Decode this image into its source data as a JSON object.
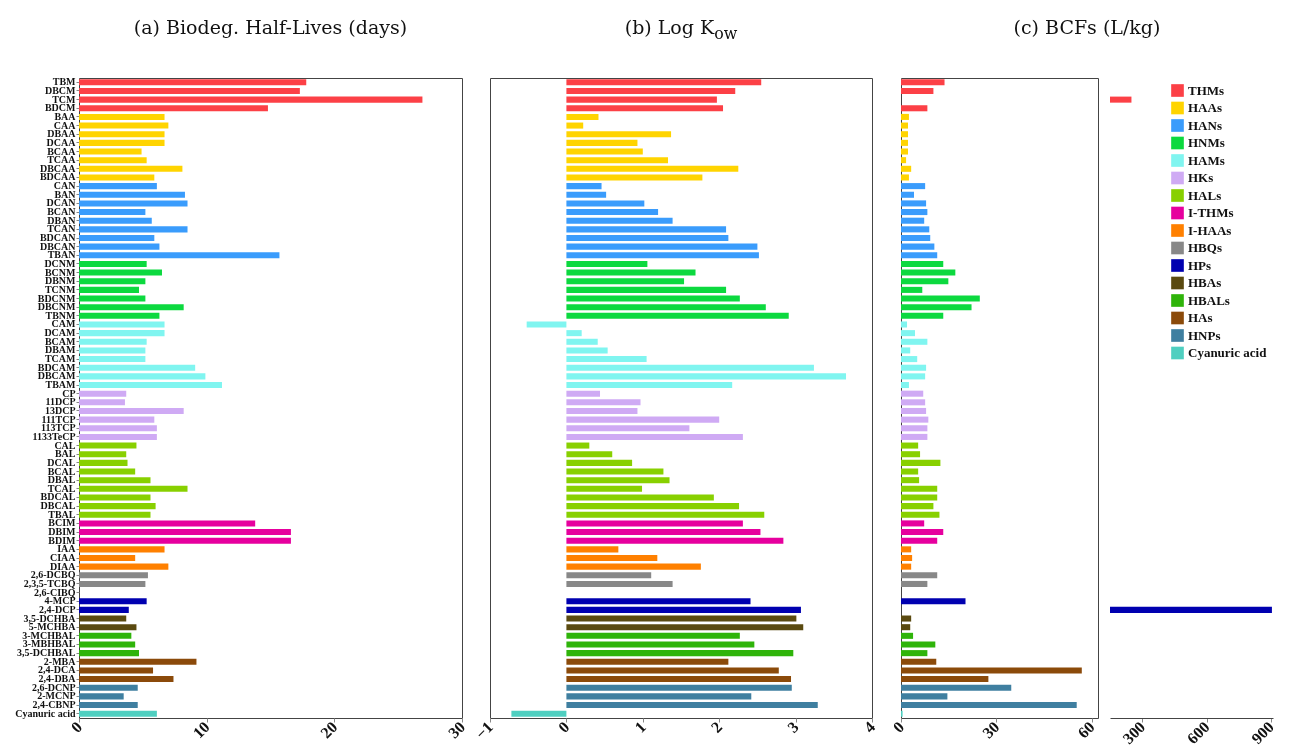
{
  "chart_data": [
    {
      "type": "bar",
      "orientation": "horizontal",
      "title": "(a) Biodeg. Half-Lives (days)",
      "categories": [
        "TBM",
        "DBCM",
        "TCM",
        "BDCM",
        "BAA",
        "CAA",
        "DBAA",
        "DCAA",
        "BCAA",
        "TCAA",
        "DBCAA",
        "BDCAA",
        "CAN",
        "BAN",
        "DCAN",
        "BCAN",
        "DBAN",
        "TCAN",
        "BDCAN",
        "DBCAN",
        "TBAN",
        "DCNM",
        "BCNM",
        "DBNM",
        "TCNM",
        "BDCNM",
        "DBCNM",
        "TBNM",
        "CAM",
        "DCAM",
        "BCAM",
        "DBAM",
        "TCAM",
        "BDCAM",
        "DBCAM",
        "TBAM",
        "CP",
        "11DCP",
        "13DCP",
        "111TCP",
        "113TCP",
        "1133TeCP",
        "CAL",
        "BAL",
        "DCAL",
        "BCAL",
        "DBAL",
        "TCAL",
        "BDCAL",
        "DBCAL",
        "TBAL",
        "BCIM",
        "DBIM",
        "BDIM",
        "IAA",
        "CIAA",
        "DIAA",
        "2,6-DCBQ",
        "2,3,5-TCBQ",
        "2,6-CIBQ",
        "4-MCP",
        "2,4-DCP",
        "3,5-DCHBA",
        "5-MCHBA",
        "3-MCHBAL",
        "3-MBHBAL",
        "3,5-DCHBAL",
        "2-MBA",
        "2,4-DCA",
        "2,4-DBA",
        "2,6-DCNP",
        "2-MCNP",
        "2,4-CBNP",
        "Cyanuric acid"
      ],
      "values": [
        17.8,
        17.3,
        26.9,
        14.8,
        6.7,
        7.0,
        6.7,
        6.7,
        4.9,
        5.3,
        8.1,
        5.9,
        6.1,
        8.3,
        8.5,
        5.2,
        5.7,
        8.5,
        5.9,
        6.3,
        15.7,
        5.3,
        6.5,
        5.2,
        4.7,
        5.2,
        8.2,
        6.3,
        6.7,
        6.7,
        5.3,
        5.2,
        5.2,
        9.1,
        9.9,
        11.2,
        3.7,
        3.6,
        8.2,
        5.9,
        6.1,
        6.1,
        4.5,
        3.7,
        3.8,
        4.4,
        5.6,
        8.5,
        5.6,
        6.0,
        5.6,
        13.8,
        16.6,
        16.6,
        6.7,
        4.4,
        7.0,
        5.4,
        5.2,
        null,
        5.3,
        3.9,
        3.7,
        4.5,
        4.1,
        4.4,
        4.7,
        9.2,
        5.8,
        7.4,
        4.6,
        3.5,
        4.6,
        6.1
      ],
      "colors": [
        "#fc4046",
        "#fc4046",
        "#fc4046",
        "#fc4046",
        "#ffd400",
        "#ffd400",
        "#ffd400",
        "#ffd400",
        "#ffd400",
        "#ffd400",
        "#ffd400",
        "#ffd400",
        "#3a9cfc",
        "#3a9cfc",
        "#3a9cfc",
        "#3a9cfc",
        "#3a9cfc",
        "#3a9cfc",
        "#3a9cfc",
        "#3a9cfc",
        "#3a9cfc",
        "#0cd93f",
        "#0cd93f",
        "#0cd93f",
        "#0cd93f",
        "#0cd93f",
        "#0cd93f",
        "#0cd93f",
        "#80f5f0",
        "#80f5f0",
        "#80f5f0",
        "#80f5f0",
        "#80f5f0",
        "#80f5f0",
        "#80f5f0",
        "#80f5f0",
        "#cfaaf4",
        "#cfaaf4",
        "#cfaaf4",
        "#cfaaf4",
        "#cfaaf4",
        "#cfaaf4",
        "#88d000",
        "#88d000",
        "#88d000",
        "#88d000",
        "#88d000",
        "#88d000",
        "#88d000",
        "#88d000",
        "#88d000",
        "#e6009e",
        "#e6009e",
        "#e6009e",
        "#ff8000",
        "#ff8000",
        "#ff8000",
        "#888888",
        "#888888",
        null,
        "#0000b0",
        "#0000b0",
        "#5a4a10",
        "#5a4a10",
        "#2fb40a",
        "#2fb40a",
        "#2fb40a",
        "#8b4a0a",
        "#8b4a0a",
        "#8b4a0a",
        "#3f7fa0",
        "#3f7fa0",
        "#3f7fa0",
        "#4fcfc0"
      ],
      "xlim": [
        0,
        30
      ],
      "xticks": [
        0,
        10,
        20,
        30
      ]
    },
    {
      "type": "bar",
      "orientation": "horizontal",
      "title": "(b) Log K$_{ow}$",
      "categories": [
        null,
        null,
        null,
        null,
        null,
        null,
        null,
        null,
        null,
        null,
        null,
        null,
        null,
        null,
        null,
        null,
        null,
        null,
        null,
        null,
        null,
        null,
        null,
        null,
        null,
        null,
        null,
        null,
        null,
        null,
        null,
        null,
        null,
        null,
        null,
        null,
        null,
        null,
        null,
        null,
        null,
        null,
        null,
        null,
        null,
        null,
        null,
        null,
        null,
        null,
        null,
        null,
        null,
        null,
        null,
        null,
        null,
        null,
        null,
        null,
        null,
        null,
        null,
        null,
        null,
        null,
        null,
        null,
        null,
        null,
        null,
        null,
        null,
        null
      ],
      "values": [
        2.55,
        2.21,
        1.97,
        2.05,
        0.42,
        0.22,
        1.37,
        0.93,
        1.0,
        1.33,
        2.25,
        1.78,
        0.46,
        0.52,
        1.02,
        1.2,
        1.39,
        2.09,
        2.12,
        2.5,
        2.52,
        1.06,
        1.69,
        1.54,
        2.09,
        2.27,
        2.61,
        2.91,
        -0.52,
        0.2,
        0.41,
        0.54,
        1.05,
        3.24,
        3.66,
        2.17,
        0.44,
        0.97,
        0.93,
        2.0,
        1.61,
        2.31,
        0.3,
        0.6,
        0.86,
        1.27,
        1.35,
        0.99,
        1.93,
        2.26,
        2.59,
        2.31,
        2.54,
        2.84,
        0.68,
        1.19,
        1.76,
        1.11,
        1.39,
        null,
        2.41,
        3.07,
        3.01,
        3.1,
        2.27,
        2.46,
        2.97,
        2.12,
        2.78,
        2.94,
        2.95,
        2.42,
        3.29,
        -0.72
      ],
      "colors": [
        "#fc4046",
        "#fc4046",
        "#fc4046",
        "#fc4046",
        "#ffd400",
        "#ffd400",
        "#ffd400",
        "#ffd400",
        "#ffd400",
        "#ffd400",
        "#ffd400",
        "#ffd400",
        "#3a9cfc",
        "#3a9cfc",
        "#3a9cfc",
        "#3a9cfc",
        "#3a9cfc",
        "#3a9cfc",
        "#3a9cfc",
        "#3a9cfc",
        "#3a9cfc",
        "#0cd93f",
        "#0cd93f",
        "#0cd93f",
        "#0cd93f",
        "#0cd93f",
        "#0cd93f",
        "#0cd93f",
        "#80f5f0",
        "#80f5f0",
        "#80f5f0",
        "#80f5f0",
        "#80f5f0",
        "#80f5f0",
        "#80f5f0",
        "#80f5f0",
        "#cfaaf4",
        "#cfaaf4",
        "#cfaaf4",
        "#cfaaf4",
        "#cfaaf4",
        "#cfaaf4",
        "#88d000",
        "#88d000",
        "#88d000",
        "#88d000",
        "#88d000",
        "#88d000",
        "#88d000",
        "#88d000",
        "#88d000",
        "#e6009e",
        "#e6009e",
        "#e6009e",
        "#ff8000",
        "#ff8000",
        "#ff8000",
        "#888888",
        "#888888",
        null,
        "#0000b0",
        "#0000b0",
        "#5a4a10",
        "#5a4a10",
        "#2fb40a",
        "#2fb40a",
        "#2fb40a",
        "#8b4a0a",
        "#8b4a0a",
        "#8b4a0a",
        "#3f7fa0",
        "#3f7fa0",
        "#3f7fa0",
        "#4fcfc0"
      ],
      "xlim": [
        -1,
        4
      ],
      "xticks": [
        -1,
        0,
        1,
        2,
        3,
        4
      ],
      "tick_labels": "x"
    },
    {
      "type": "bar",
      "orientation": "horizontal",
      "title": "(c) BCFs (L/kg)",
      "categories": [
        null,
        null,
        null,
        null,
        null,
        null,
        null,
        null,
        null,
        null,
        null,
        null,
        null,
        null,
        null,
        null,
        null,
        null,
        null,
        null,
        null,
        null,
        null,
        null,
        null,
        null,
        null,
        null,
        null,
        null,
        null,
        null,
        null,
        null,
        null,
        null,
        null,
        null,
        null,
        null,
        null,
        null,
        null,
        null,
        null,
        null,
        null,
        null,
        null,
        null,
        null,
        null,
        null,
        null,
        null,
        null,
        null,
        null,
        null,
        null,
        null,
        null,
        null,
        null,
        null,
        null,
        null,
        null,
        null,
        null,
        null,
        null,
        null,
        null
      ],
      "values": [
        13.7,
        10.2,
        null,
        8.3,
        2.5,
        2.2,
        2.2,
        2.2,
        2.2,
        1.6,
        3.2,
        2.5,
        7.6,
        4.1,
        7.9,
        8.3,
        7.3,
        8.9,
        9.2,
        10.5,
        11.4,
        13.3,
        17.1,
        14.9,
        6.7,
        24.8,
        22.2,
        13.3,
        1.9,
        4.4,
        8.3,
        2.9,
        5.1,
        7.9,
        7.6,
        2.5,
        7.0,
        7.6,
        7.9,
        8.6,
        8.3,
        8.3,
        5.4,
        6.0,
        12.4,
        5.4,
        5.7,
        11.4,
        11.4,
        10.2,
        12.1,
        7.3,
        13.3,
        11.4,
        3.2,
        3.5,
        3.2,
        11.4,
        8.3,
        null,
        20.3,
        null,
        3.2,
        2.9,
        3.8,
        10.8,
        8.3,
        11.1,
        56.9,
        27.5,
        34.7,
        14.6,
        55.3,
        0.5
      ],
      "colors": [
        "#fc4046",
        "#fc4046",
        "#fc4046",
        "#fc4046",
        "#ffd400",
        "#ffd400",
        "#ffd400",
        "#ffd400",
        "#ffd400",
        "#ffd400",
        "#ffd400",
        "#ffd400",
        "#3a9cfc",
        "#3a9cfc",
        "#3a9cfc",
        "#3a9cfc",
        "#3a9cfc",
        "#3a9cfc",
        "#3a9cfc",
        "#3a9cfc",
        "#3a9cfc",
        "#0cd93f",
        "#0cd93f",
        "#0cd93f",
        "#0cd93f",
        "#0cd93f",
        "#0cd93f",
        "#0cd93f",
        "#80f5f0",
        "#80f5f0",
        "#80f5f0",
        "#80f5f0",
        "#80f5f0",
        "#80f5f0",
        "#80f5f0",
        "#80f5f0",
        "#cfaaf4",
        "#cfaaf4",
        "#cfaaf4",
        "#cfaaf4",
        "#cfaaf4",
        "#cfaaf4",
        "#88d000",
        "#88d000",
        "#88d000",
        "#88d000",
        "#88d000",
        "#88d000",
        "#88d000",
        "#88d000",
        "#88d000",
        "#e6009e",
        "#e6009e",
        "#e6009e",
        "#ff8000",
        "#ff8000",
        "#ff8000",
        "#888888",
        "#888888",
        null,
        "#0000b0",
        "#0000b0",
        "#5a4a10",
        "#5a4a10",
        "#2fb40a",
        "#2fb40a",
        "#2fb40a",
        "#8b4a0a",
        "#8b4a0a",
        "#8b4a0a",
        "#3f7fa0",
        "#3f7fa0",
        "#3f7fa0",
        "#4fcfc0"
      ],
      "xlim": [
        0,
        62
      ],
      "xticks": [
        0,
        30,
        60
      ],
      "tick_labels": "x"
    },
    {
      "type": "bar",
      "orientation": "horizontal",
      "categories": [
        null,
        null,
        null,
        null,
        null,
        null,
        null,
        null,
        null,
        null,
        null,
        null,
        null,
        null,
        null,
        null,
        null,
        null,
        null,
        null,
        null,
        null,
        null,
        null,
        null,
        null,
        null,
        null,
        null,
        null,
        null,
        null,
        null,
        null,
        null,
        null,
        null,
        null,
        null,
        null,
        null,
        null,
        null,
        null,
        null,
        null,
        null,
        null,
        null,
        null,
        null,
        null,
        null,
        null,
        null,
        null,
        null,
        null,
        null,
        null,
        null,
        null,
        null,
        null,
        null,
        null,
        null,
        null,
        null,
        null,
        null,
        null,
        null,
        null
      ],
      "series": [
        {
          "name": "THMs",
          "color": "#fc4046",
          "values": [
            null,
            null,
            250,
            null,
            null,
            null,
            null,
            null,
            null,
            null,
            null,
            null,
            null,
            null,
            null,
            null,
            null,
            null,
            null,
            null,
            null,
            null,
            null,
            null,
            null,
            null,
            null,
            null,
            null,
            null,
            null,
            null,
            null,
            null,
            null,
            null,
            null,
            null,
            null,
            null,
            null,
            null,
            null,
            null,
            null,
            null,
            null,
            null,
            null,
            null,
            null,
            null,
            null,
            null,
            null,
            null,
            null,
            null,
            null,
            null,
            null,
            null,
            null,
            null,
            null,
            null,
            null,
            null,
            null,
            null,
            null,
            null,
            null,
            null
          ]
        },
        {
          "name": "HAAs",
          "color": "#ffd400",
          "values": [
            null,
            null,
            null,
            null,
            null,
            null,
            null,
            null,
            null,
            null,
            null,
            null,
            null,
            null,
            null,
            null,
            null,
            null,
            null,
            null,
            null,
            null,
            null,
            null,
            null,
            null,
            null,
            null,
            null,
            null,
            null,
            null,
            null,
            null,
            null,
            null,
            null,
            null,
            null,
            null,
            null,
            null,
            null,
            null,
            null,
            null,
            null,
            null,
            null,
            null,
            null,
            null,
            null,
            null,
            null,
            null,
            null,
            null,
            null,
            null,
            null,
            null,
            null,
            null,
            null,
            null,
            null,
            null,
            null,
            null,
            null,
            null,
            null,
            null
          ]
        },
        {
          "name": "HANs",
          "color": "#3a9cfc",
          "values": [
            null,
            null,
            null,
            null,
            null,
            null,
            null,
            null,
            null,
            null,
            null,
            null,
            null,
            null,
            null,
            null,
            null,
            null,
            null,
            null,
            null,
            null,
            null,
            null,
            null,
            null,
            null,
            null,
            null,
            null,
            null,
            null,
            null,
            null,
            null,
            null,
            null,
            null,
            null,
            null,
            null,
            null,
            null,
            null,
            null,
            null,
            null,
            null,
            null,
            null,
            null,
            null,
            null,
            null,
            null,
            null,
            null,
            null,
            null,
            null,
            null,
            null,
            null,
            null,
            null,
            null,
            null,
            null,
            null,
            null,
            null,
            null,
            null,
            null
          ]
        },
        {
          "name": "HNMs",
          "color": "#0cd93f",
          "values": [
            null,
            null,
            null,
            null,
            null,
            null,
            null,
            null,
            null,
            null,
            null,
            null,
            null,
            null,
            null,
            null,
            null,
            null,
            null,
            null,
            null,
            null,
            null,
            null,
            null,
            null,
            null,
            null,
            null,
            null,
            null,
            null,
            null,
            null,
            null,
            null,
            null,
            null,
            null,
            null,
            null,
            null,
            null,
            null,
            null,
            null,
            null,
            null,
            null,
            null,
            null,
            null,
            null,
            null,
            null,
            null,
            null,
            null,
            null,
            null,
            null,
            null,
            null,
            null,
            null,
            null,
            null,
            null,
            null,
            null,
            null,
            null,
            null,
            null
          ]
        },
        {
          "name": "HAMs",
          "color": "#80f5f0",
          "values": [
            null,
            null,
            null,
            null,
            null,
            null,
            null,
            null,
            null,
            null,
            null,
            null,
            null,
            null,
            null,
            null,
            null,
            null,
            null,
            null,
            null,
            null,
            null,
            null,
            null,
            null,
            null,
            null,
            null,
            null,
            null,
            null,
            null,
            null,
            null,
            null,
            null,
            null,
            null,
            null,
            null,
            null,
            null,
            null,
            null,
            null,
            null,
            null,
            null,
            null,
            null,
            null,
            null,
            null,
            null,
            null,
            null,
            null,
            null,
            null,
            null,
            null,
            null,
            null,
            null,
            null,
            null,
            null,
            null,
            null,
            null,
            null,
            null,
            null
          ]
        },
        {
          "name": "HKs",
          "color": "#cfaaf4",
          "values": [
            null,
            null,
            null,
            null,
            null,
            null,
            null,
            null,
            null,
            null,
            null,
            null,
            null,
            null,
            null,
            null,
            null,
            null,
            null,
            null,
            null,
            null,
            null,
            null,
            null,
            null,
            null,
            null,
            null,
            null,
            null,
            null,
            null,
            null,
            null,
            null,
            null,
            null,
            null,
            null,
            null,
            null,
            null,
            null,
            null,
            null,
            null,
            null,
            null,
            null,
            null,
            null,
            null,
            null,
            null,
            null,
            null,
            null,
            null,
            null,
            null,
            null,
            null,
            null,
            null,
            null,
            null,
            null,
            null,
            null,
            null,
            null,
            null,
            null
          ]
        },
        {
          "name": "HALs",
          "color": "#88d000",
          "values": [
            null,
            null,
            null,
            null,
            null,
            null,
            null,
            null,
            null,
            null,
            null,
            null,
            null,
            null,
            null,
            null,
            null,
            null,
            null,
            null,
            null,
            null,
            null,
            null,
            null,
            null,
            null,
            null,
            null,
            null,
            null,
            null,
            null,
            null,
            null,
            null,
            null,
            null,
            null,
            null,
            null,
            null,
            null,
            null,
            null,
            null,
            null,
            null,
            null,
            null,
            null,
            null,
            null,
            null,
            null,
            null,
            null,
            null,
            null,
            null,
            null,
            null,
            null,
            null,
            null,
            null,
            null,
            null,
            null,
            null,
            null,
            null,
            null,
            null
          ]
        },
        {
          "name": "I-THMs",
          "color": "#e6009e",
          "values": [
            null,
            null,
            null,
            null,
            null,
            null,
            null,
            null,
            null,
            null,
            null,
            null,
            null,
            null,
            null,
            null,
            null,
            null,
            null,
            null,
            null,
            null,
            null,
            null,
            null,
            null,
            null,
            null,
            null,
            null,
            null,
            null,
            null,
            null,
            null,
            null,
            null,
            null,
            null,
            null,
            null,
            null,
            null,
            null,
            null,
            null,
            null,
            null,
            null,
            null,
            null,
            null,
            null,
            null,
            null,
            null,
            null,
            null,
            null,
            null,
            null,
            null,
            null,
            null,
            null,
            null,
            null,
            null,
            null,
            null,
            null,
            null,
            null,
            null
          ]
        },
        {
          "name": "I-HAAs",
          "color": "#ff8000",
          "values": [
            null,
            null,
            null,
            null,
            null,
            null,
            null,
            null,
            null,
            null,
            null,
            null,
            null,
            null,
            null,
            null,
            null,
            null,
            null,
            null,
            null,
            null,
            null,
            null,
            null,
            null,
            null,
            null,
            null,
            null,
            null,
            null,
            null,
            null,
            null,
            null,
            null,
            null,
            null,
            null,
            null,
            null,
            null,
            null,
            null,
            null,
            null,
            null,
            null,
            null,
            null,
            null,
            null,
            null,
            null,
            null,
            null,
            null,
            null,
            null,
            null,
            null,
            null,
            null,
            null,
            null,
            null,
            null,
            null,
            null,
            null,
            null,
            null,
            null
          ]
        },
        {
          "name": "HBQs",
          "color": "#888888",
          "values": [
            null,
            null,
            null,
            null,
            null,
            null,
            null,
            null,
            null,
            null,
            null,
            null,
            null,
            null,
            null,
            null,
            null,
            null,
            null,
            null,
            null,
            null,
            null,
            null,
            null,
            null,
            null,
            null,
            null,
            null,
            null,
            null,
            null,
            null,
            null,
            null,
            null,
            null,
            null,
            null,
            null,
            null,
            null,
            null,
            null,
            null,
            null,
            null,
            null,
            null,
            null,
            null,
            null,
            null,
            null,
            null,
            null,
            null,
            null,
            null,
            null,
            null,
            null,
            null,
            null,
            null,
            null,
            null,
            null,
            null,
            null,
            null,
            null,
            null
          ]
        },
        {
          "name": "HPs",
          "color": "#0000b0",
          "values": [
            null,
            null,
            null,
            null,
            null,
            null,
            null,
            null,
            null,
            null,
            null,
            null,
            null,
            null,
            null,
            null,
            null,
            null,
            null,
            null,
            null,
            null,
            null,
            null,
            null,
            null,
            null,
            null,
            null,
            null,
            null,
            null,
            null,
            null,
            null,
            null,
            null,
            null,
            null,
            null,
            null,
            null,
            null,
            null,
            null,
            null,
            null,
            null,
            null,
            null,
            null,
            null,
            null,
            null,
            null,
            null,
            null,
            null,
            null,
            null,
            null,
            905,
            null,
            null,
            null,
            null,
            null,
            null,
            null,
            null,
            null,
            null,
            null,
            null
          ]
        },
        {
          "name": "HBAs",
          "color": "#5a4a10",
          "values": [
            null,
            null,
            null,
            null,
            null,
            null,
            null,
            null,
            null,
            null,
            null,
            null,
            null,
            null,
            null,
            null,
            null,
            null,
            null,
            null,
            null,
            null,
            null,
            null,
            null,
            null,
            null,
            null,
            null,
            null,
            null,
            null,
            null,
            null,
            null,
            null,
            null,
            null,
            null,
            null,
            null,
            null,
            null,
            null,
            null,
            null,
            null,
            null,
            null,
            null,
            null,
            null,
            null,
            null,
            null,
            null,
            null,
            null,
            null,
            null,
            null,
            null,
            null,
            null,
            null,
            null,
            null,
            null,
            null,
            null,
            null,
            null,
            null,
            null
          ]
        },
        {
          "name": "HBALs",
          "color": "#2fb40a",
          "values": [
            null,
            null,
            null,
            null,
            null,
            null,
            null,
            null,
            null,
            null,
            null,
            null,
            null,
            null,
            null,
            null,
            null,
            null,
            null,
            null,
            null,
            null,
            null,
            null,
            null,
            null,
            null,
            null,
            null,
            null,
            null,
            null,
            null,
            null,
            null,
            null,
            null,
            null,
            null,
            null,
            null,
            null,
            null,
            null,
            null,
            null,
            null,
            null,
            null,
            null,
            null,
            null,
            null,
            null,
            null,
            null,
            null,
            null,
            null,
            null,
            null,
            null,
            null,
            null,
            null,
            null,
            null,
            null,
            null,
            null,
            null,
            null,
            null,
            null
          ]
        },
        {
          "name": "HAs",
          "color": "#8b4a0a",
          "values": [
            null,
            null,
            null,
            null,
            null,
            null,
            null,
            null,
            null,
            null,
            null,
            null,
            null,
            null,
            null,
            null,
            null,
            null,
            null,
            null,
            null,
            null,
            null,
            null,
            null,
            null,
            null,
            null,
            null,
            null,
            null,
            null,
            null,
            null,
            null,
            null,
            null,
            null,
            null,
            null,
            null,
            null,
            null,
            null,
            null,
            null,
            null,
            null,
            null,
            null,
            null,
            null,
            null,
            null,
            null,
            null,
            null,
            null,
            null,
            null,
            null,
            null,
            null,
            null,
            null,
            null,
            null,
            null,
            null,
            null,
            null,
            null,
            null,
            null
          ]
        },
        {
          "name": "HNPs",
          "color": "#3f7fa0",
          "values": [
            null,
            null,
            null,
            null,
            null,
            null,
            null,
            null,
            null,
            null,
            null,
            null,
            null,
            null,
            null,
            null,
            null,
            null,
            null,
            null,
            null,
            null,
            null,
            null,
            null,
            null,
            null,
            null,
            null,
            null,
            null,
            null,
            null,
            null,
            null,
            null,
            null,
            null,
            null,
            null,
            null,
            null,
            null,
            null,
            null,
            null,
            null,
            null,
            null,
            null,
            null,
            null,
            null,
            null,
            null,
            null,
            null,
            null,
            null,
            null,
            null,
            null,
            null,
            null,
            null,
            null,
            null,
            null,
            null,
            null,
            null,
            null,
            null,
            null
          ]
        },
        {
          "name": "Cyanuric acid",
          "color": "#4fcfc0",
          "values": [
            null,
            null,
            null,
            null,
            null,
            null,
            null,
            null,
            null,
            null,
            null,
            null,
            null,
            null,
            null,
            null,
            null,
            null,
            null,
            null,
            null,
            null,
            null,
            null,
            null,
            null,
            null,
            null,
            null,
            null,
            null,
            null,
            null,
            null,
            null,
            null,
            null,
            null,
            null,
            null,
            null,
            null,
            null,
            null,
            null,
            null,
            null,
            null,
            null,
            null,
            null,
            null,
            null,
            null,
            null,
            null,
            null,
            null,
            null,
            null,
            null,
            null,
            null,
            null,
            null,
            null,
            null,
            null,
            null,
            null,
            null,
            null,
            null,
            null
          ]
        }
      ],
      "xlim": [
        150,
        910
      ],
      "xticks": [
        300,
        600,
        900
      ],
      "legend": "top right",
      "tick_labels": "x"
    }
  ]
}
